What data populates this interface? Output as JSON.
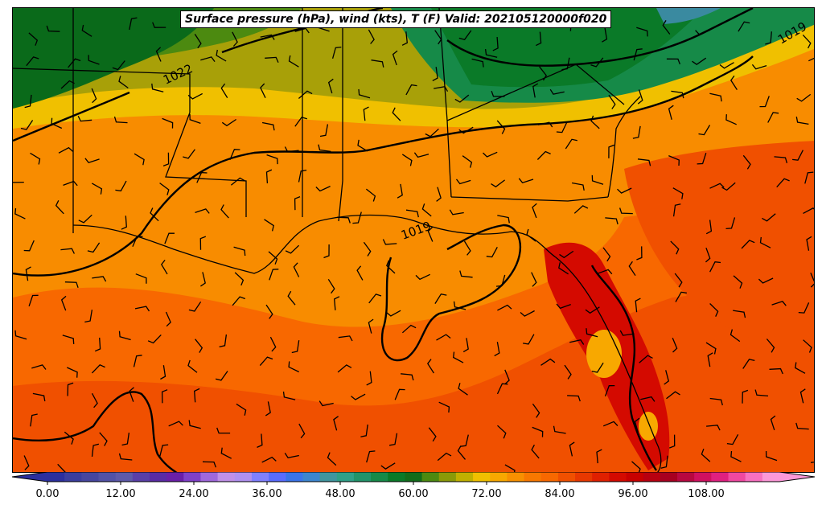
{
  "title": "Surface pressure (hPa), wind (kts), T (F) Valid: 202105120000f020",
  "isobar_labels": [
    "1022",
    "1019",
    "1019"
  ],
  "colorbar": {
    "ticks": [
      "0.00",
      "12.00",
      "24.00",
      "36.00",
      "48.00",
      "60.00",
      "72.00",
      "84.00",
      "96.00",
      "108.00"
    ],
    "colors": [
      "#2b2f9e",
      "#3a3d9f",
      "#4646a0",
      "#5252a6",
      "#5e5aa9",
      "#5a3fa7",
      "#5a2ba5",
      "#6a1fa8",
      "#8040c8",
      "#a068dc",
      "#c090e8",
      "#b090f0",
      "#8080ff",
      "#5a6cff",
      "#3a74ea",
      "#3c86d0",
      "#40969f",
      "#30a088",
      "#22946a",
      "#168a48",
      "#0a7a28",
      "#126c1a",
      "#4c8a10",
      "#8a9a08",
      "#c0b000",
      "#f0c000",
      "#f8a800",
      "#f89000",
      "#f87800",
      "#f86800",
      "#f05000",
      "#e83800",
      "#e02000",
      "#d40a00",
      "#c80000",
      "#b80010",
      "#a80020",
      "#b80840",
      "#d01060",
      "#e02080",
      "#f048a0",
      "#f870c0",
      "#fc98d8"
    ],
    "min": 0,
    "max": 120
  },
  "map_colors": {
    "dark_green": "#0a6a1a",
    "green": "#2a9a50",
    "olive": "#a8a008",
    "yellow": "#f0c000",
    "orange": "#f88c00",
    "orange_red": "#f86400",
    "red_orange": "#f04c00",
    "red": "#d40a00",
    "teal": "#3a8aa0"
  }
}
